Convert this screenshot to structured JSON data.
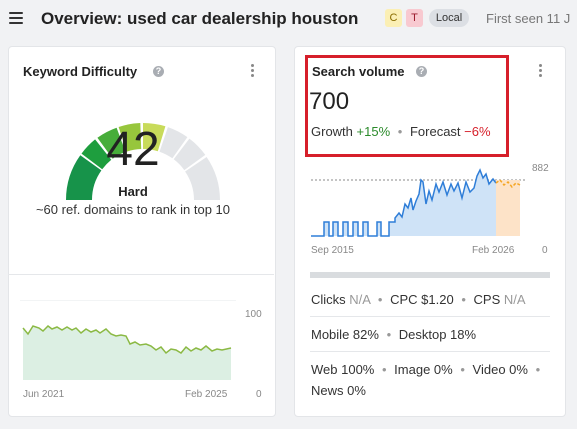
{
  "header": {
    "title": "Overview: used car dealership houston",
    "badges": [
      "C",
      "T",
      "Local"
    ],
    "first_seen": "First seen 11 J"
  },
  "keyword_difficulty": {
    "title": "Keyword Difficulty",
    "help": "?",
    "value": "42",
    "level": "Hard",
    "description": "~60 ref. domains to rank in top 10",
    "trend": {
      "y_max_label": "100",
      "y_min_label": "0",
      "x_start": "Jun 2021",
      "x_end": "Feb 2025"
    }
  },
  "search_volume": {
    "title": "Search volume",
    "help": "?",
    "value": "700",
    "growth_label": "Growth",
    "growth_value": "+15%",
    "forecast_label": "Forecast",
    "forecast_value": "−6%",
    "chart": {
      "y_max_label": "882",
      "y_min_label": "0",
      "x_start": "Sep 2015",
      "x_end": "Feb 2026"
    },
    "clicks_label": "Clicks",
    "clicks_value": "N/A",
    "cpc_label": "CPC",
    "cpc_value": "$1.20",
    "cps_label": "CPS",
    "cps_value": "N/A",
    "mobile": "Mobile 82%",
    "desktop": "Desktop 18%",
    "web": "Web 100%",
    "image": "Image 0%",
    "video": "Video 0%",
    "news": "News 0%"
  },
  "colors": {
    "accent_red": "#d61f2a",
    "growth_green": "#2a8a2a",
    "chart_blue": "#2f7ed8",
    "forecast_orange": "#f5a623"
  }
}
